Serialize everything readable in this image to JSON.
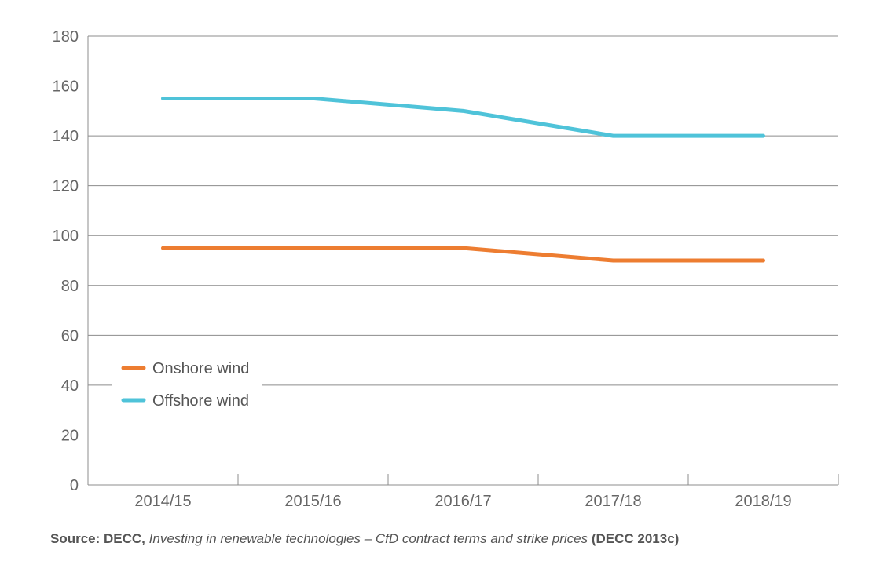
{
  "chart_data": {
    "type": "line",
    "categories": [
      "2014/15",
      "2015/16",
      "2016/17",
      "2017/18",
      "2018/19"
    ],
    "series": [
      {
        "name": "Onshore wind",
        "values": [
          95,
          95,
          95,
          90,
          90
        ],
        "color": "#ED7D31"
      },
      {
        "name": "Offshore wind",
        "values": [
          155,
          155,
          150,
          140,
          140
        ],
        "color": "#4FC3D9"
      }
    ],
    "y_ticks": [
      "0",
      "20",
      "40",
      "60",
      "80",
      "100",
      "120",
      "140",
      "160",
      "180"
    ],
    "ylim": [
      0,
      180
    ],
    "grid": true,
    "legend_position": "lower-left"
  },
  "source": {
    "prefix": "Source: DECC,",
    "italic": "Investing in renewable technologies – CfD contract terms and strike prices",
    "suffix": "(DECC 2013c)"
  }
}
